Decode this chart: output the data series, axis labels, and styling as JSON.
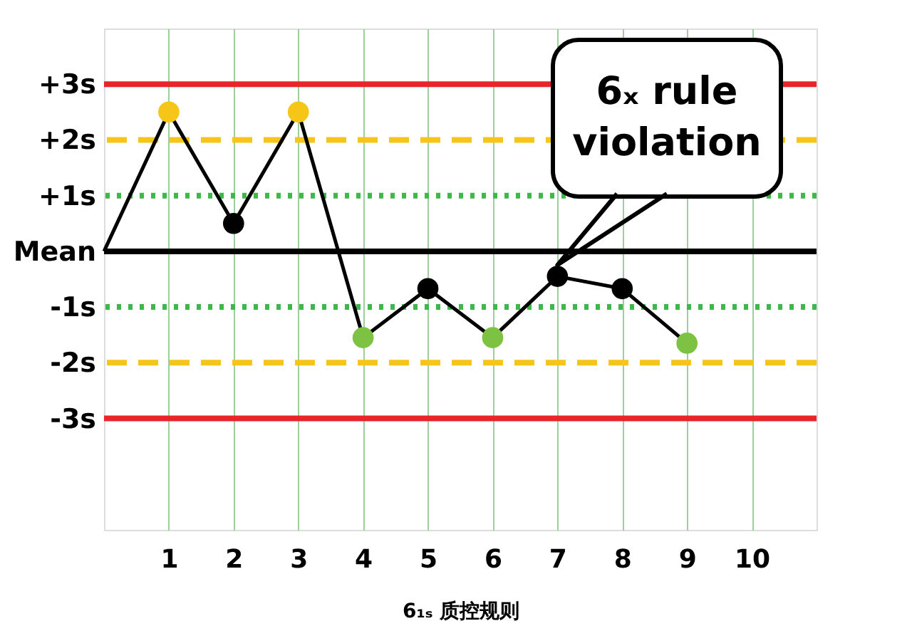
{
  "chart_data": {
    "type": "line",
    "xlabel": "6₁ₛ 质控规则",
    "x": [
      0,
      1,
      2,
      3,
      4,
      5,
      6,
      7,
      8,
      9
    ],
    "series": [
      {
        "color": "#000000",
        "values": [
          0,
          2.5,
          0.5,
          2.5,
          -1.55,
          -0.67,
          -1.55,
          -0.45,
          -0.67,
          -1.65
        ],
        "colors": [
          null,
          "#f5c518",
          "#000000",
          "#f5c518",
          "#7dc242",
          "#000000",
          "#7dc242",
          "#000000",
          "#000000",
          "#7dc242"
        ]
      }
    ],
    "marker": "circle",
    "line_style": "solid",
    "xlim": [
      0,
      11
    ],
    "xticks": [
      1,
      2,
      3,
      4,
      5,
      6,
      7,
      8,
      9,
      10
    ],
    "ylim": [
      -5,
      4
    ],
    "yticks": [
      {
        "value": 3,
        "label": "+3s"
      },
      {
        "value": 2,
        "label": "+2s"
      },
      {
        "value": 1,
        "label": "+1s"
      },
      {
        "value": 0,
        "label": "Mean"
      },
      {
        "value": -1,
        "label": "-1s"
      },
      {
        "value": -2,
        "label": "-2s"
      },
      {
        "value": -3,
        "label": "-3s"
      }
    ],
    "grid": "x",
    "ref_lines": [
      {
        "axis": "y",
        "value": 3,
        "color": "#e8262a",
        "line_style": "solid"
      },
      {
        "axis": "y",
        "value": 2,
        "color": "#f5c518",
        "line_style": "dashed"
      },
      {
        "axis": "y",
        "value": 1,
        "color": "#3cb94a",
        "line_style": "dotted"
      },
      {
        "axis": "y",
        "value": 0,
        "color": "#000000",
        "line_style": "solid"
      },
      {
        "axis": "y",
        "value": -1,
        "color": "#3cb94a",
        "line_style": "dotted"
      },
      {
        "axis": "y",
        "value": -2,
        "color": "#f5c518",
        "line_style": "dashed"
      },
      {
        "axis": "y",
        "value": -3,
        "color": "#e8262a",
        "line_style": "solid"
      }
    ],
    "annotations": [
      {
        "text": "6ₓ rule violation",
        "x": 7,
        "y": -0.45
      }
    ]
  }
}
